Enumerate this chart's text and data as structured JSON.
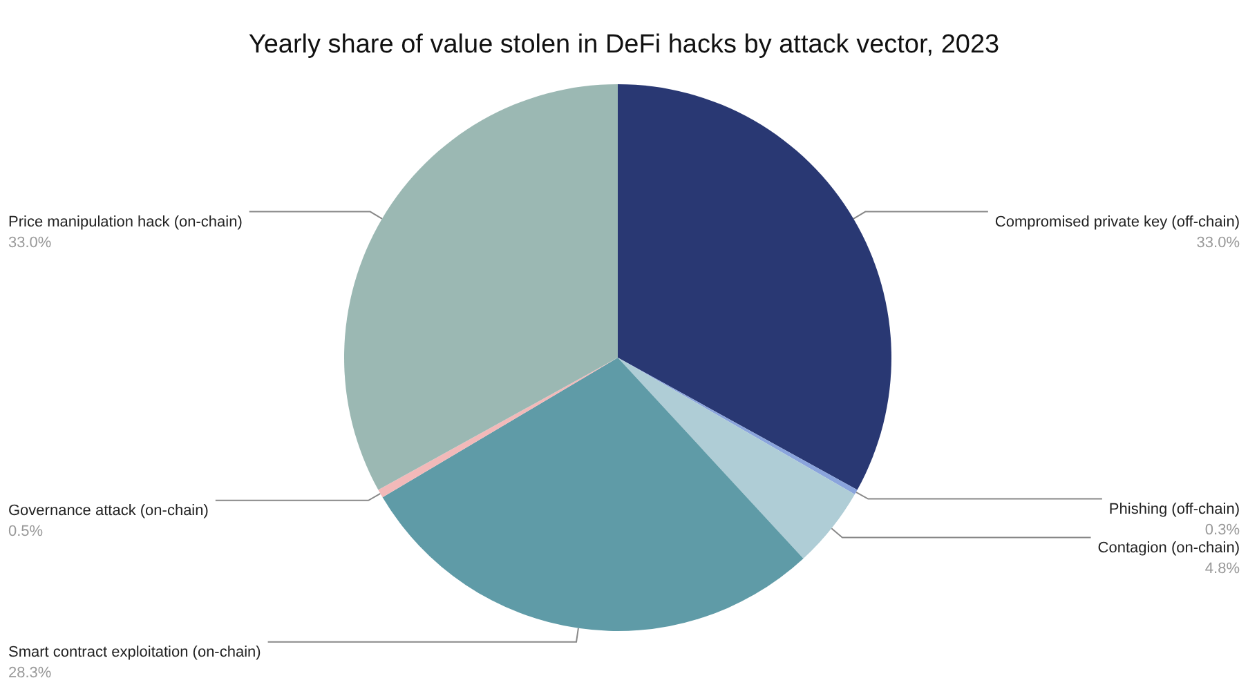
{
  "chart_data": {
    "type": "pie",
    "title": "Yearly share of value stolen in DeFi hacks by attack vector, 2023",
    "categories": [
      "Compromised private key (off-chain)",
      "Phishing (off-chain)",
      "Contagion (on-chain)",
      "Smart contract exploitation (on-chain)",
      "Governance attack (on-chain)",
      "Price manipulation hack (on-chain)"
    ],
    "values": [
      33.0,
      0.3,
      4.8,
      28.3,
      0.5,
      33.0
    ],
    "value_labels": [
      "33.0%",
      "0.3%",
      "4.8%",
      "28.3%",
      "0.5%",
      "33.0%"
    ],
    "colors": [
      "#293873",
      "#8aa4dc",
      "#afcdd6",
      "#5f9ba7",
      "#f2b9b9",
      "#9bb8b3"
    ],
    "legend": false
  }
}
